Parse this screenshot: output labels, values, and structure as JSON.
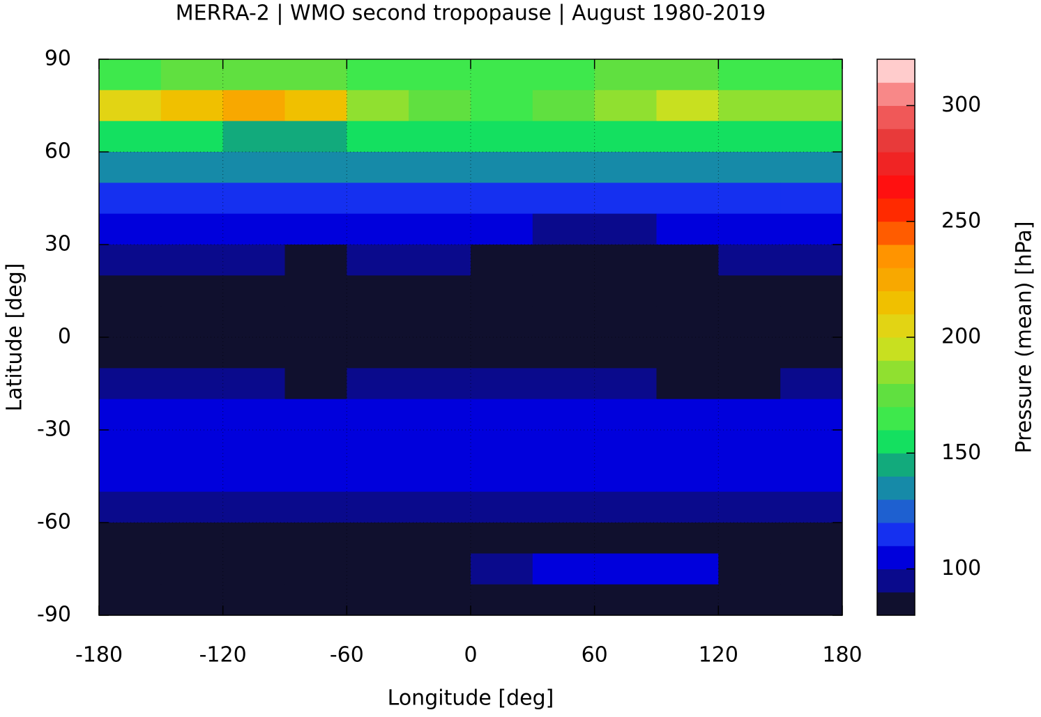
{
  "chart_data": {
    "type": "heatmap",
    "title": "MERRA-2 | WMO second tropopause | August 1980-2019",
    "xlabel": "Longitude [deg]",
    "ylabel": "Latitude [deg]",
    "colorbar_label": "Pressure (mean) [hPa]",
    "xlim": [
      -180,
      180
    ],
    "ylim": [
      -90,
      90
    ],
    "xticks": [
      -180,
      -120,
      -60,
      0,
      60,
      120,
      180
    ],
    "yticks": [
      -90,
      -60,
      -30,
      0,
      30,
      60,
      90
    ],
    "grid": true,
    "x_edges": [
      -180,
      -150,
      -120,
      -90,
      -60,
      -30,
      0,
      30,
      60,
      90,
      120,
      150,
      180
    ],
    "y_edges": [
      90,
      80,
      70,
      60,
      50,
      40,
      30,
      20,
      10,
      0,
      -10,
      -20,
      -30,
      -40,
      -50,
      -60,
      -70,
      -80,
      -90
    ],
    "values": [
      [
        165,
        170,
        175,
        170,
        165,
        160,
        160,
        165,
        170,
        170,
        165,
        165
      ],
      [
        200,
        215,
        220,
        210,
        180,
        170,
        165,
        175,
        185,
        195,
        185,
        185
      ],
      [
        150,
        150,
        145,
        145,
        150,
        155,
        150,
        150,
        155,
        150,
        150,
        150
      ],
      [
        130,
        135,
        130,
        130,
        130,
        135,
        135,
        130,
        130,
        135,
        135,
        130
      ],
      [
        115,
        118,
        115,
        115,
        118,
        118,
        115,
        112,
        112,
        115,
        118,
        115
      ],
      [
        102,
        105,
        105,
        102,
        105,
        105,
        102,
        95,
        92,
        100,
        105,
        102
      ],
      [
        95,
        95,
        92,
        88,
        92,
        95,
        88,
        85,
        85,
        88,
        95,
        95
      ],
      [
        88,
        88,
        85,
        85,
        88,
        85,
        85,
        85,
        85,
        85,
        88,
        88
      ],
      [
        85,
        85,
        85,
        85,
        85,
        85,
        85,
        85,
        85,
        85,
        85,
        85
      ],
      [
        85,
        85,
        85,
        85,
        85,
        85,
        85,
        85,
        85,
        85,
        85,
        85
      ],
      [
        92,
        92,
        90,
        88,
        92,
        92,
        90,
        90,
        92,
        88,
        88,
        92
      ],
      [
        102,
        105,
        102,
        100,
        102,
        100,
        100,
        102,
        102,
        102,
        102,
        102
      ],
      [
        105,
        105,
        108,
        105,
        105,
        105,
        105,
        105,
        105,
        105,
        105,
        105
      ],
      [
        102,
        102,
        102,
        102,
        102,
        102,
        102,
        102,
        102,
        102,
        102,
        102
      ],
      [
        92,
        92,
        92,
        92,
        92,
        92,
        92,
        92,
        92,
        92,
        92,
        92
      ],
      [
        85,
        85,
        85,
        85,
        85,
        85,
        85,
        85,
        85,
        85,
        85,
        85
      ],
      [
        85,
        85,
        85,
        85,
        85,
        85,
        92,
        105,
        108,
        100,
        88,
        85
      ],
      [
        85,
        85,
        85,
        85,
        85,
        85,
        85,
        85,
        85,
        85,
        85,
        85
      ]
    ],
    "clim": [
      80,
      320
    ],
    "cticks": [
      100,
      150,
      200,
      250,
      300
    ],
    "colormap": [
      "#10102e",
      "#0a0a8c",
      "#0000dc",
      "#1530f0",
      "#1e60d0",
      "#168aa8",
      "#12aa7c",
      "#14e060",
      "#3ee84c",
      "#60e040",
      "#90e030",
      "#c8e020",
      "#e2d414",
      "#f0c000",
      "#f8a800",
      "#ff9400",
      "#ff5c00",
      "#ff2a00",
      "#ff1010",
      "#f02424",
      "#e83a3a",
      "#f05858",
      "#f88888",
      "#ffcccc"
    ]
  }
}
